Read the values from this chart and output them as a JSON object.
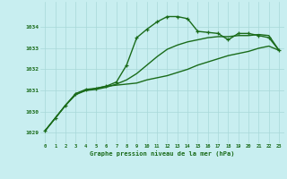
{
  "title": "Graphe pression niveau de la mer (hPa)",
  "background_color": "#c8eef0",
  "grid_color": "#a8d8d8",
  "line_color": "#1a6b1a",
  "marker_color": "#1a6b1a",
  "xlim": [
    -0.5,
    23.5
  ],
  "ylim": [
    1028.5,
    1035.2
  ],
  "yticks": [
    1029,
    1030,
    1031,
    1032,
    1033,
    1034
  ],
  "xticks": [
    0,
    1,
    2,
    3,
    4,
    5,
    6,
    7,
    8,
    9,
    10,
    11,
    12,
    13,
    14,
    15,
    16,
    17,
    18,
    19,
    20,
    21,
    22,
    23
  ],
  "series": [
    {
      "x": [
        0,
        1,
        2,
        3,
        4,
        5,
        6,
        7,
        8,
        9,
        10,
        11,
        12,
        13,
        14,
        15,
        16,
        17,
        18,
        19,
        20,
        21,
        22,
        23
      ],
      "y": [
        1029.1,
        1029.7,
        1030.3,
        1030.8,
        1031.0,
        1031.1,
        1031.2,
        1031.25,
        1031.3,
        1031.35,
        1031.5,
        1031.6,
        1031.7,
        1031.85,
        1032.0,
        1032.2,
        1032.35,
        1032.5,
        1032.65,
        1032.75,
        1032.85,
        1033.0,
        1033.1,
        1032.9
      ],
      "marker": false,
      "linewidth": 1.0
    },
    {
      "x": [
        0,
        1,
        2,
        3,
        4,
        5,
        6,
        7,
        8,
        9,
        10,
        11,
        12,
        13,
        14,
        15,
        16,
        17,
        18,
        19,
        20,
        21,
        22,
        23
      ],
      "y": [
        1029.1,
        1029.7,
        1030.3,
        1030.85,
        1031.0,
        1031.05,
        1031.15,
        1031.3,
        1031.5,
        1031.8,
        1032.2,
        1032.6,
        1032.95,
        1033.15,
        1033.3,
        1033.4,
        1033.5,
        1033.55,
        1033.55,
        1033.6,
        1033.6,
        1033.65,
        1033.6,
        1032.9
      ],
      "marker": false,
      "linewidth": 1.0
    },
    {
      "x": [
        0,
        1,
        2,
        3,
        4,
        5,
        6,
        7,
        8,
        9,
        10,
        11,
        12,
        13,
        14,
        15,
        16,
        17,
        18,
        19,
        20,
        21,
        22,
        23
      ],
      "y": [
        1029.1,
        1029.7,
        1030.3,
        1030.85,
        1031.05,
        1031.1,
        1031.2,
        1031.4,
        1032.2,
        1033.5,
        1033.9,
        1034.25,
        1034.5,
        1034.5,
        1034.4,
        1033.8,
        1033.75,
        1033.7,
        1033.4,
        1033.7,
        1033.7,
        1033.6,
        1033.5,
        1032.9
      ],
      "marker": true,
      "linewidth": 1.0
    }
  ]
}
